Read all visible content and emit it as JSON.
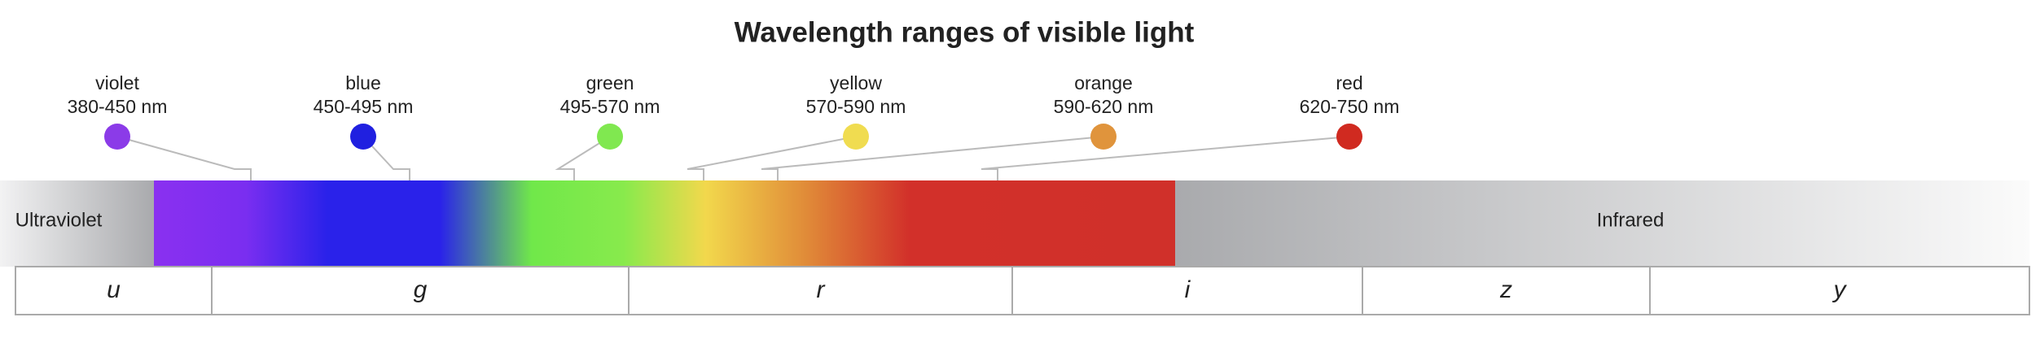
{
  "title": "Wavelength ranges of visible light",
  "colors": [
    {
      "name": "violet",
      "range": "380-450 nm",
      "color": "#8b3be8"
    },
    {
      "name": "blue",
      "range": "450-495 nm",
      "color": "#2020e0"
    },
    {
      "name": "green",
      "range": "495-570 nm",
      "color": "#80e850"
    },
    {
      "name": "yellow",
      "range": "570-590 nm",
      "color": "#f0dc50"
    },
    {
      "name": "orange",
      "range": "590-620 nm",
      "color": "#e0943c"
    },
    {
      "name": "red",
      "range": "620-750 nm",
      "color": "#d02a20"
    }
  ],
  "spectrum": {
    "left_label": "Ultraviolet",
    "right_label": "Infrared"
  },
  "filters": [
    "u",
    "g",
    "r",
    "i",
    "z",
    "y"
  ]
}
